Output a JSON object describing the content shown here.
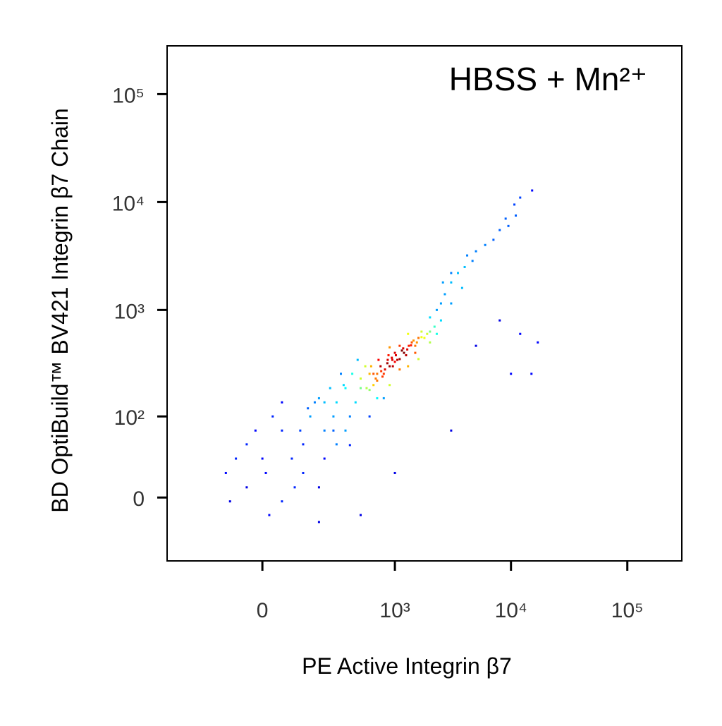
{
  "chart_data": {
    "type": "scatter",
    "title": "HBSS + Mn²⁺",
    "x_label": "PE Active Integrin β7",
    "y_label": "BD OptiBuild™ BV421 Integrin β7 Chain",
    "xscale": "biexponential",
    "yscale": "biexponential",
    "colormap": "jet",
    "xlim": [
      -470,
      294000
    ],
    "ylim": [
      -66,
      280000
    ],
    "xticks": [
      0,
      {
        "value": 1000,
        "label": "10³"
      },
      {
        "value": 10000,
        "label": "10⁴"
      },
      {
        "value": 100000,
        "label": "10⁵"
      }
    ],
    "yticks": [
      0,
      {
        "value": 100,
        "label": "10²"
      },
      {
        "value": 1000,
        "label": "10³"
      },
      {
        "value": 10000,
        "label": "10⁴"
      },
      {
        "value": 100000,
        "label": "10⁵"
      }
    ],
    "x": [
      -115,
      -46,
      0,
      58,
      131,
      -46,
      58,
      20,
      131,
      228,
      90,
      -80,
      30,
      160,
      228,
      100,
      -20,
      180,
      58,
      280,
      300,
      200,
      10,
      120,
      -100,
      228,
      300,
      364,
      400,
      260,
      330,
      450,
      364,
      500,
      420,
      280,
      470,
      565,
      600,
      650,
      700,
      720,
      800,
      866,
      900,
      950,
      1000,
      1050,
      1100,
      1200,
      1320,
      1400,
      1500,
      1600,
      1700,
      1800,
      2010,
      2200,
      2500,
      650,
      750,
      820,
      880,
      960,
      1150,
      1250,
      1450,
      700,
      780,
      860,
      940,
      1020,
      1100,
      1180,
      1280,
      1380,
      1550,
      600,
      680,
      760,
      1000,
      1700,
      1900,
      500,
      550,
      620,
      900,
      1300,
      2010,
      2300,
      1100,
      1500,
      2010,
      2500,
      3060,
      2600,
      3060,
      3500,
      4000,
      4670,
      3060,
      2300,
      2700,
      3800,
      4200,
      5000,
      7070,
      8000,
      9000,
      10700,
      12000,
      15200,
      6000,
      9500,
      11000,
      5000,
      10000,
      15000,
      12000,
      17000,
      3060,
      1000,
      500,
      8000,
      200,
      400,
      600,
      800,
      350,
      700,
      900,
      1300,
      1600,
      200,
      150
    ],
    "y": [
      20,
      8,
      34,
      -3,
      20,
      51,
      72,
      -14,
      51,
      72,
      34,
      34,
      100,
      100,
      34,
      8,
      72,
      137,
      137,
      100,
      51,
      8,
      20,
      72,
      -3,
      137,
      137,
      187,
      100,
      187,
      255,
      137,
      72,
      187,
      255,
      72,
      344,
      187,
      255,
      255,
      255,
      344,
      255,
      344,
      300,
      344,
      400,
      344,
      465,
      400,
      465,
      500,
      465,
      550,
      630,
      550,
      630,
      700,
      800,
      200,
      300,
      280,
      380,
      300,
      420,
      380,
      520,
      220,
      240,
      320,
      360,
      380,
      350,
      440,
      430,
      470,
      500,
      180,
      230,
      270,
      330,
      560,
      600,
      230,
      300,
      300,
      450,
      600,
      500,
      600,
      280,
      400,
      853,
      1150,
      1150,
      1800,
      1800,
      2200,
      2500,
      2850,
      2200,
      1000,
      1400,
      1600,
      3200,
      3500,
      4470,
      5500,
      7020,
      9480,
      11000,
      12800,
      4000,
      6000,
      7500,
      465,
      255,
      255,
      600,
      500,
      72,
      20,
      -14,
      800,
      -20,
      50,
      100,
      150,
      200,
      150,
      200,
      300,
      350,
      150,
      120
    ]
  }
}
